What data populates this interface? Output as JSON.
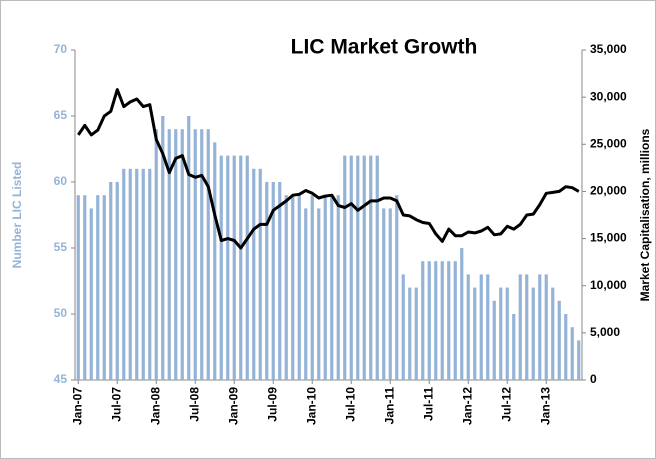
{
  "chart_data": {
    "type": "bar_line",
    "title": "LIC Market Growth",
    "y_label": "Number LIC Listed",
    "y2_label": "Market Capitalisation, millions",
    "categories": [
      "Jan-07",
      null,
      null,
      null,
      null,
      null,
      "Jul-07",
      null,
      null,
      null,
      null,
      null,
      "Jan-08",
      null,
      null,
      null,
      null,
      null,
      "Jul-08",
      null,
      null,
      null,
      null,
      null,
      "Jan-09",
      null,
      null,
      null,
      null,
      null,
      "Jul-09",
      null,
      null,
      null,
      null,
      null,
      "Jan-10",
      null,
      null,
      null,
      null,
      null,
      "Jul-10",
      null,
      null,
      null,
      null,
      null,
      "Jan-11",
      null,
      null,
      null,
      null,
      null,
      "Jul-11",
      null,
      null,
      null,
      null,
      null,
      "Jan-12",
      null,
      null,
      null,
      null,
      null,
      "Jul-12",
      null,
      null,
      null,
      null,
      null,
      "Jan-13",
      null,
      null,
      null,
      null,
      null
    ],
    "series": [
      {
        "type": "bar",
        "axis": "y",
        "color": "#95b3d7",
        "values": [
          59,
          59,
          58,
          59,
          59,
          60,
          60,
          61,
          61,
          61,
          61,
          61,
          64,
          65,
          64,
          64,
          64,
          65,
          64,
          64,
          64,
          63,
          62,
          62,
          62,
          62,
          62,
          61,
          61,
          60,
          60,
          60,
          59,
          59,
          59,
          58,
          59,
          58,
          59,
          59,
          59,
          62,
          62,
          62,
          62,
          62,
          62,
          58,
          58,
          59,
          53,
          52,
          52,
          54,
          54,
          54,
          54,
          54,
          54,
          55,
          53,
          52,
          53,
          53,
          51,
          52,
          52,
          50,
          53,
          53,
          52,
          53,
          53,
          52,
          51,
          50,
          49,
          48
        ]
      },
      {
        "type": "line",
        "axis": "y2",
        "color": "#000000",
        "values": [
          26000,
          27000,
          26000,
          26500,
          28000,
          28500,
          30800,
          29000,
          29500,
          29800,
          29000,
          29200,
          25500,
          24000,
          22000,
          23500,
          23800,
          21800,
          21500,
          21700,
          20500,
          17500,
          14800,
          15000,
          14800,
          14000,
          15000,
          16000,
          16500,
          16500,
          18000,
          18500,
          19000,
          19600,
          19700,
          20100,
          19800,
          19300,
          19500,
          19600,
          18500,
          18300,
          18700,
          18000,
          18500,
          19000,
          19000,
          19300,
          19300,
          19000,
          17500,
          17400,
          17000,
          16700,
          16600,
          15500,
          14700,
          16000,
          15300,
          15300,
          15700,
          15600,
          15800,
          16200,
          15400,
          15500,
          16300,
          16000,
          16500,
          17500,
          17600,
          18600,
          19800,
          19900,
          20000,
          20500,
          20400,
          20000
        ]
      }
    ],
    "ylim": [
      45,
      70
    ],
    "yticks": [
      45,
      50,
      55,
      60,
      65,
      70
    ],
    "y2lim": [
      0,
      35000
    ],
    "y2ticks": [
      0,
      {
        "value": 5000,
        "label": "5,000"
      },
      {
        "value": 10000,
        "label": "10,000"
      },
      {
        "value": 15000,
        "label": "15,000"
      },
      {
        "value": 20000,
        "label": "20,000"
      },
      {
        "value": 25000,
        "label": "25,000"
      },
      {
        "value": 30000,
        "label": "30,000"
      },
      {
        "value": 35000,
        "label": "35,000"
      }
    ]
  }
}
